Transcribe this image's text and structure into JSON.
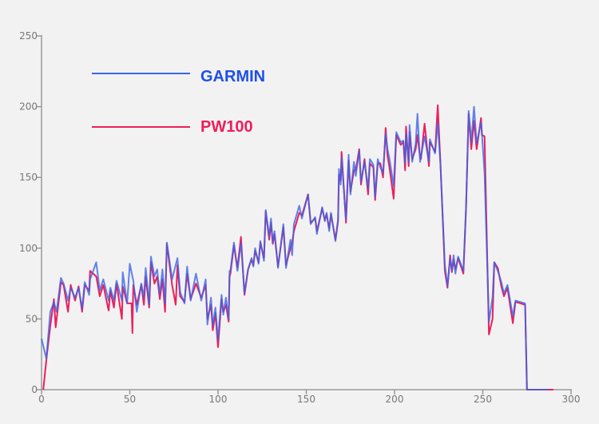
{
  "chart_data": {
    "type": "line",
    "title": "",
    "xlabel": "",
    "ylabel": "",
    "xlim": [
      0,
      300
    ],
    "ylim": [
      0,
      250
    ],
    "xticks": [
      0,
      50,
      100,
      150,
      200,
      250,
      300
    ],
    "yticks": [
      0,
      50,
      100,
      150,
      200,
      250
    ],
    "grid": false,
    "legend_position": "top-left",
    "series": [
      {
        "name": "GARMIN",
        "color": "#3c63e6",
        "points": [
          [
            0,
            36
          ],
          [
            2.7,
            22
          ],
          [
            5,
            55
          ],
          [
            7,
            62
          ],
          [
            8.5,
            55
          ],
          [
            11,
            79
          ],
          [
            12.5,
            75
          ],
          [
            15,
            63
          ],
          [
            16.5,
            72
          ],
          [
            19,
            65
          ],
          [
            21,
            72
          ],
          [
            23,
            57
          ],
          [
            24.5,
            76
          ],
          [
            27,
            67
          ],
          [
            27.5,
            78
          ],
          [
            31,
            90
          ],
          [
            33,
            70
          ],
          [
            35,
            78
          ],
          [
            38,
            63
          ],
          [
            39,
            72
          ],
          [
            41,
            63
          ],
          [
            42.5,
            77
          ],
          [
            45.5,
            63
          ],
          [
            46,
            83
          ],
          [
            48.5,
            61
          ],
          [
            50,
            89
          ],
          [
            52,
            77
          ],
          [
            54,
            55
          ],
          [
            56.5,
            75
          ],
          [
            58,
            65
          ],
          [
            59,
            86
          ],
          [
            61,
            60
          ],
          [
            62,
            94
          ],
          [
            64,
            80
          ],
          [
            65.5,
            85
          ],
          [
            67,
            67
          ],
          [
            68.5,
            85
          ],
          [
            70,
            61
          ],
          [
            71,
            104
          ],
          [
            74,
            78
          ],
          [
            77,
            93
          ],
          [
            78.5,
            69
          ],
          [
            81,
            61
          ],
          [
            82.5,
            87
          ],
          [
            84.5,
            63
          ],
          [
            87.5,
            82
          ],
          [
            90.5,
            63
          ],
          [
            93,
            78
          ],
          [
            94,
            46
          ],
          [
            96,
            65
          ],
          [
            97,
            45
          ],
          [
            98.5,
            58
          ],
          [
            100,
            35
          ],
          [
            102,
            67
          ],
          [
            103,
            53
          ],
          [
            104.5,
            65
          ],
          [
            106,
            50
          ],
          [
            106.5,
            84
          ],
          [
            107,
            84
          ],
          [
            109,
            104
          ],
          [
            111,
            84
          ],
          [
            113,
            104
          ],
          [
            115,
            68
          ],
          [
            117,
            85
          ],
          [
            119,
            93
          ],
          [
            120,
            87
          ],
          [
            121,
            100
          ],
          [
            123,
            89
          ],
          [
            124,
            105
          ],
          [
            126,
            91
          ],
          [
            127,
            127
          ],
          [
            129,
            108
          ],
          [
            130,
            121
          ],
          [
            131,
            104
          ],
          [
            132,
            112
          ],
          [
            134,
            86
          ],
          [
            137,
            117
          ],
          [
            138.5,
            86
          ],
          [
            141,
            106
          ],
          [
            142,
            95
          ],
          [
            143,
            117
          ],
          [
            146,
            130
          ],
          [
            147.5,
            121
          ],
          [
            151,
            138
          ],
          [
            152.5,
            117
          ],
          [
            155,
            122
          ],
          [
            156,
            110
          ],
          [
            159,
            129
          ],
          [
            160.5,
            119
          ],
          [
            161.5,
            125
          ],
          [
            163,
            112
          ],
          [
            164,
            125
          ],
          [
            166.5,
            105
          ],
          [
            168,
            119
          ],
          [
            168.5,
            156
          ],
          [
            169.5,
            145
          ],
          [
            170,
            164
          ],
          [
            172.5,
            120
          ],
          [
            174,
            166
          ],
          [
            175,
            138
          ],
          [
            177,
            161
          ],
          [
            178,
            151
          ],
          [
            180,
            169
          ],
          [
            181,
            147
          ],
          [
            183,
            161
          ],
          [
            185,
            142
          ],
          [
            186,
            163
          ],
          [
            188,
            159
          ],
          [
            189,
            136
          ],
          [
            190.5,
            163
          ],
          [
            192,
            157
          ],
          [
            193.5,
            153
          ],
          [
            195,
            181
          ],
          [
            196,
            170
          ],
          [
            197,
            164
          ],
          [
            199.5,
            144
          ],
          [
            201,
            182
          ],
          [
            203.5,
            175
          ],
          [
            205,
            176
          ],
          [
            206,
            160
          ],
          [
            206.5,
            181
          ],
          [
            208,
            161
          ],
          [
            208.5,
            187
          ],
          [
            210,
            161
          ],
          [
            212,
            174
          ],
          [
            213,
            195
          ],
          [
            214.5,
            161
          ],
          [
            215,
            165
          ],
          [
            217,
            179
          ],
          [
            219.5,
            161
          ],
          [
            220,
            177
          ],
          [
            223,
            167
          ],
          [
            224.5,
            189
          ],
          [
            226,
            159
          ],
          [
            228.5,
            88
          ],
          [
            230,
            73
          ],
          [
            231.5,
            93
          ],
          [
            232.5,
            84
          ],
          [
            233.5,
            95
          ],
          [
            234.5,
            82
          ],
          [
            236,
            94
          ],
          [
            239,
            84
          ],
          [
            240.5,
            128
          ],
          [
            242,
            197
          ],
          [
            243.5,
            175
          ],
          [
            245,
            200
          ],
          [
            246.5,
            174
          ],
          [
            249,
            189
          ],
          [
            249.5,
            181
          ],
          [
            251,
            153
          ],
          [
            253.5,
            48
          ],
          [
            255.5,
            65
          ],
          [
            256.5,
            90
          ],
          [
            258.5,
            84
          ],
          [
            260.5,
            76
          ],
          [
            262,
            68
          ],
          [
            264,
            74
          ],
          [
            267,
            52
          ],
          [
            268.5,
            63
          ],
          [
            274,
            61
          ],
          [
            275,
            0
          ],
          [
            287,
            0
          ]
        ]
      },
      {
        "name": "PW100",
        "color": "#ec1f5c",
        "points": [
          [
            1,
            0
          ],
          [
            3,
            24
          ],
          [
            5,
            45
          ],
          [
            7,
            64
          ],
          [
            8,
            44
          ],
          [
            11,
            76
          ],
          [
            12.5,
            74
          ],
          [
            15,
            55
          ],
          [
            16.5,
            74
          ],
          [
            19,
            63
          ],
          [
            21,
            73
          ],
          [
            23,
            55
          ],
          [
            24.5,
            74
          ],
          [
            27,
            70
          ],
          [
            27.5,
            84
          ],
          [
            31,
            80
          ],
          [
            33,
            66
          ],
          [
            35,
            74
          ],
          [
            38,
            56
          ],
          [
            39,
            70
          ],
          [
            41,
            58
          ],
          [
            42.5,
            75
          ],
          [
            45.5,
            50
          ],
          [
            46,
            73
          ],
          [
            48.5,
            61
          ],
          [
            51,
            61
          ],
          [
            51.5,
            40
          ],
          [
            52,
            74
          ],
          [
            54,
            60
          ],
          [
            56.5,
            74
          ],
          [
            58,
            60
          ],
          [
            59,
            80
          ],
          [
            61,
            58
          ],
          [
            62,
            90
          ],
          [
            64,
            75
          ],
          [
            65.5,
            80
          ],
          [
            67,
            64
          ],
          [
            68.5,
            78
          ],
          [
            70,
            55
          ],
          [
            71,
            103
          ],
          [
            74,
            74
          ],
          [
            76,
            60
          ],
          [
            77,
            88
          ],
          [
            78.5,
            66
          ],
          [
            81,
            62
          ],
          [
            82.5,
            82
          ],
          [
            84.5,
            64
          ],
          [
            87.5,
            75
          ],
          [
            90.5,
            65
          ],
          [
            93,
            74
          ],
          [
            94,
            50
          ],
          [
            96,
            60
          ],
          [
            97,
            42
          ],
          [
            98.5,
            54
          ],
          [
            100,
            30
          ],
          [
            102,
            64
          ],
          [
            103,
            55
          ],
          [
            104.5,
            60
          ],
          [
            106,
            48
          ],
          [
            106.5,
            80
          ],
          [
            107,
            82
          ],
          [
            109,
            102
          ],
          [
            111,
            86
          ],
          [
            113,
            108
          ],
          [
            115,
            67
          ],
          [
            117,
            85
          ],
          [
            119,
            92
          ],
          [
            120,
            88
          ],
          [
            121,
            98
          ],
          [
            123,
            90
          ],
          [
            124,
            104
          ],
          [
            126,
            93
          ],
          [
            127,
            126
          ],
          [
            129,
            106
          ],
          [
            130,
            118
          ],
          [
            131,
            103
          ],
          [
            132,
            110
          ],
          [
            134,
            87
          ],
          [
            137,
            115
          ],
          [
            138.5,
            88
          ],
          [
            141,
            100
          ],
          [
            142,
            104
          ],
          [
            143,
            112
          ],
          [
            146,
            125
          ],
          [
            147.5,
            123
          ],
          [
            151,
            138
          ],
          [
            152.5,
            118
          ],
          [
            155,
            121
          ],
          [
            156,
            112
          ],
          [
            159,
            128
          ],
          [
            160.5,
            120
          ],
          [
            161.5,
            124
          ],
          [
            163,
            114
          ],
          [
            164,
            124
          ],
          [
            166.5,
            106
          ],
          [
            168,
            120
          ],
          [
            168.5,
            152
          ],
          [
            169.5,
            148
          ],
          [
            170,
            168
          ],
          [
            172.5,
            118
          ],
          [
            174,
            162
          ],
          [
            175,
            140
          ],
          [
            177,
            155
          ],
          [
            178,
            155
          ],
          [
            180,
            170
          ],
          [
            181,
            145
          ],
          [
            183,
            163
          ],
          [
            185,
            138
          ],
          [
            186,
            160
          ],
          [
            188,
            157
          ],
          [
            189,
            134
          ],
          [
            190.5,
            160
          ],
          [
            192,
            160
          ],
          [
            193.5,
            150
          ],
          [
            195,
            185
          ],
          [
            196,
            165
          ],
          [
            197,
            158
          ],
          [
            199.5,
            135
          ],
          [
            201,
            180
          ],
          [
            203.5,
            173
          ],
          [
            205,
            175
          ],
          [
            206,
            155
          ],
          [
            206.5,
            186
          ],
          [
            208,
            158
          ],
          [
            208.5,
            182
          ],
          [
            210,
            163
          ],
          [
            212,
            170
          ],
          [
            213,
            180
          ],
          [
            214.5,
            164
          ],
          [
            215,
            163
          ],
          [
            217,
            188
          ],
          [
            219.5,
            158
          ],
          [
            220,
            175
          ],
          [
            223,
            168
          ],
          [
            224.5,
            201
          ],
          [
            226,
            160
          ],
          [
            228.5,
            84
          ],
          [
            230,
            72
          ],
          [
            231.5,
            95
          ],
          [
            232.5,
            83
          ],
          [
            233.5,
            92
          ],
          [
            234.5,
            85
          ],
          [
            236,
            93
          ],
          [
            239,
            82
          ],
          [
            240.5,
            128
          ],
          [
            242,
            195
          ],
          [
            243.5,
            170
          ],
          [
            245,
            190
          ],
          [
            246.5,
            170
          ],
          [
            249,
            192
          ],
          [
            249.5,
            180
          ],
          [
            251,
            179
          ],
          [
            253.5,
            39
          ],
          [
            255.5,
            50
          ],
          [
            256.5,
            90
          ],
          [
            258.5,
            86
          ],
          [
            260.5,
            73
          ],
          [
            262,
            66
          ],
          [
            264,
            72
          ],
          [
            267,
            47
          ],
          [
            268.5,
            62
          ],
          [
            274,
            60
          ],
          [
            275,
            0
          ],
          [
            290,
            0
          ]
        ]
      }
    ]
  }
}
